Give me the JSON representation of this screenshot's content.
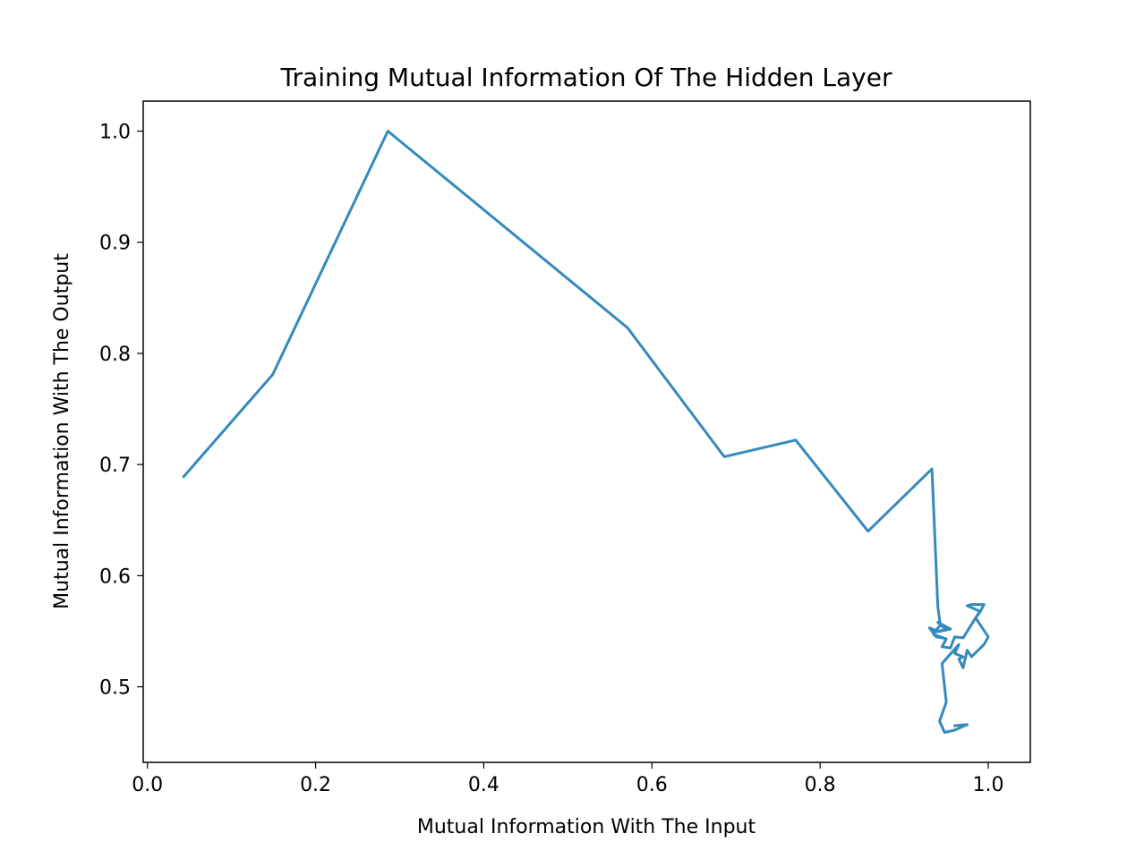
{
  "chart_data": {
    "type": "line",
    "title": "Training Mutual Information Of The Hidden Layer",
    "xlabel": "Mutual Information With The Input",
    "ylabel": "Mutual Information With The Output",
    "xlim": [
      -0.005,
      1.05
    ],
    "ylim": [
      0.432,
      1.027
    ],
    "xticks": [
      0.0,
      0.2,
      0.4,
      0.6,
      0.8,
      1.0
    ],
    "xtick_labels": [
      "0.0",
      "0.2",
      "0.4",
      "0.6",
      "0.8",
      "1.0"
    ],
    "yticks": [
      0.5,
      0.6,
      0.7,
      0.8,
      0.9,
      1.0
    ],
    "ytick_labels": [
      "0.5",
      "0.6",
      "0.7",
      "0.8",
      "0.9",
      "1.0"
    ],
    "grid": false,
    "series": [
      {
        "color": "#348abd",
        "x": [
          0.043,
          0.149,
          0.286,
          0.571,
          0.686,
          0.771,
          0.857,
          0.933,
          0.94,
          0.943,
          0.935,
          0.95,
          0.94,
          0.955,
          0.94,
          0.93,
          0.938,
          0.945,
          0.935,
          0.95,
          0.945,
          0.955,
          0.96,
          0.97,
          0.99,
          0.975,
          0.98,
          0.995,
          0.99,
          0.985,
          1.0,
          0.995,
          0.98,
          0.975,
          0.97,
          0.965,
          0.97,
          0.96,
          0.965,
          0.945,
          0.95,
          0.942,
          0.948,
          0.96,
          0.975,
          0.96
        ],
        "y": [
          0.689,
          0.781,
          1.0,
          0.823,
          0.707,
          0.722,
          0.64,
          0.696,
          0.572,
          0.555,
          0.549,
          0.551,
          0.558,
          0.552,
          0.55,
          0.553,
          0.545,
          0.544,
          0.547,
          0.543,
          0.536,
          0.535,
          0.545,
          0.544,
          0.568,
          0.573,
          0.574,
          0.574,
          0.567,
          0.562,
          0.545,
          0.538,
          0.527,
          0.533,
          0.517,
          0.525,
          0.527,
          0.53,
          0.538,
          0.521,
          0.486,
          0.469,
          0.459,
          0.461,
          0.466,
          0.465
        ]
      }
    ]
  }
}
